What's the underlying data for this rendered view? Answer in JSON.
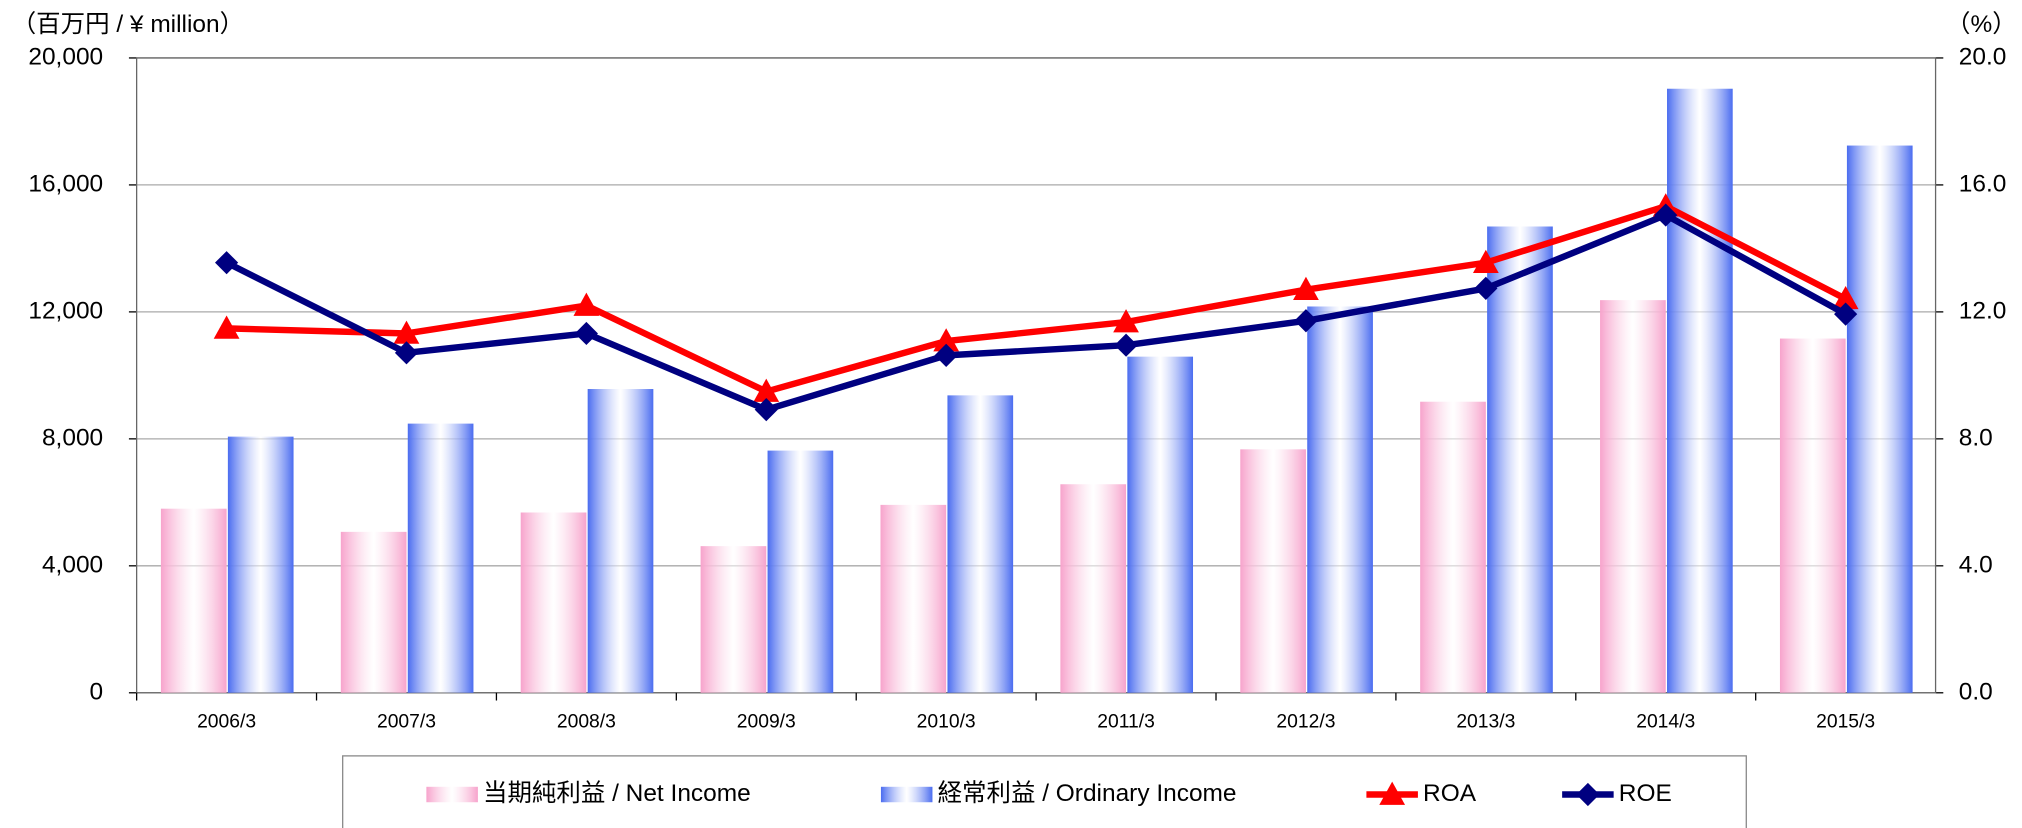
{
  "chart_data": {
    "type": "bar",
    "y_label": "（百万円 / ¥ million）",
    "y2_label": "（%）",
    "categories": [
      "2006/3",
      "2007/3",
      "2008/3",
      "2009/3",
      "2010/3",
      "2011/3",
      "2012/3",
      "2013/3",
      "2014/3",
      "2015/3"
    ],
    "series": [
      {
        "name": "当期純利益 / Net Income",
        "type": "bar",
        "color": "#f7a3cc",
        "values": [
          5800,
          5070,
          5680,
          4620,
          5920,
          6570,
          7670,
          9170,
          12370,
          11160
        ]
      },
      {
        "name": "経常利益 / Ordinary Income",
        "type": "bar",
        "color": "#4a6cf0",
        "values": [
          8070,
          8480,
          9570,
          7630,
          9370,
          10590,
          12170,
          14690,
          19030,
          17240
        ]
      },
      {
        "name": "ROA",
        "type": "line",
        "axis": "y2",
        "marker": "triangle",
        "color": "#ff0000",
        "values": [
          11.48,
          11.32,
          12.2,
          9.49,
          11.08,
          11.68,
          12.7,
          13.55,
          15.33,
          12.41
        ]
      },
      {
        "name": "ROE",
        "type": "line",
        "axis": "y2",
        "marker": "diamond",
        "color": "#000080",
        "values": [
          13.55,
          10.71,
          11.32,
          8.92,
          10.63,
          10.95,
          11.72,
          12.74,
          15.05,
          11.93
        ]
      }
    ],
    "ylim": [
      0,
      20000
    ],
    "yticks": [
      0,
      {
        "value": 4000,
        "label": "4,000"
      },
      {
        "value": 8000,
        "label": "8,000"
      },
      {
        "value": 12000,
        "label": "12,000"
      },
      {
        "value": 16000,
        "label": "16,000"
      },
      {
        "value": 20000,
        "label": "20,000"
      }
    ],
    "y2lim": [
      0,
      20
    ],
    "y2ticks": [
      {
        "value": 0,
        "label": "0.0"
      },
      {
        "value": 4,
        "label": "4.0"
      },
      {
        "value": 8,
        "label": "8.0"
      },
      {
        "value": 12,
        "label": "12.0"
      },
      {
        "value": 16,
        "label": "16.0"
      },
      {
        "value": 20,
        "label": "20.0"
      }
    ],
    "grid": true,
    "legend": "bottom"
  }
}
